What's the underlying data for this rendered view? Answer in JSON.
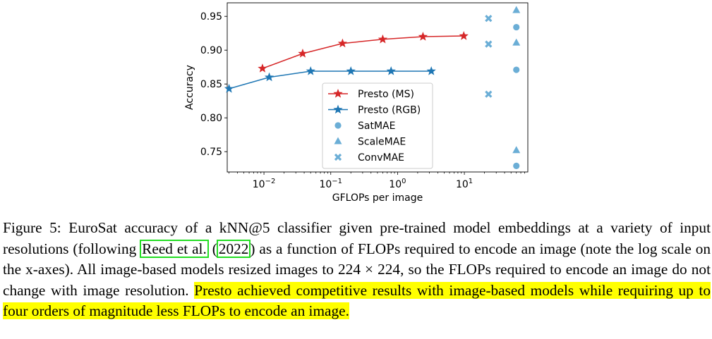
{
  "chart_data": {
    "type": "line",
    "xscale": "log",
    "xlabel": "GFLOPs per image",
    "ylabel": "Accuracy",
    "ylim": [
      0.72,
      0.97
    ],
    "y_ticks": [
      "0.75",
      "0.80",
      "0.85",
      "0.90",
      "0.95"
    ],
    "x_ticks": [
      "10^-2",
      "10^-1",
      "10^0",
      "10^1"
    ],
    "legend_position": "center",
    "series": [
      {
        "name": "Presto (MS)",
        "marker": "star",
        "color": "#d62728",
        "x": [
          0.0095,
          0.038,
          0.15,
          0.6,
          2.4,
          9.8
        ],
        "y": [
          0.873,
          0.895,
          0.91,
          0.916,
          0.92,
          0.921
        ]
      },
      {
        "name": "Presto (RGB)",
        "marker": "star",
        "color": "#1f77b4",
        "x": [
          0.003,
          0.012,
          0.05,
          0.2,
          0.8,
          3.2
        ],
        "y": [
          0.843,
          0.86,
          0.869,
          0.869,
          0.869,
          0.869
        ]
      },
      {
        "name": "SatMAE",
        "marker": "circle",
        "color": "#6baed6",
        "x": [
          60,
          60,
          60
        ],
        "y": [
          0.934,
          0.871,
          0.729
        ]
      },
      {
        "name": "ScaleMAE",
        "marker": "triangle",
        "color": "#6baed6",
        "x": [
          60,
          60,
          60
        ],
        "y": [
          0.959,
          0.911,
          0.752
        ]
      },
      {
        "name": "ConvMAE",
        "marker": "x",
        "color": "#6baed6",
        "x": [
          23,
          23,
          23
        ],
        "y": [
          0.947,
          0.909,
          0.835
        ]
      }
    ]
  },
  "caption": {
    "part1": "Figure 5: EuroSat accuracy of a kNN@5 classifier given pre-trained model embeddings at a variety of input resolutions (following ",
    "cite_author": "Reed et al.",
    "cite_open": " (",
    "cite_year": "2022",
    "cite_close": ")",
    "part2": " as a function of FLOPs required to encode an image (note the log scale on the x-axes). All image-based models resized images to 224 × 224, so the FLOPs required to encode an image do not change with image resolution. ",
    "highlight": "Presto achieved competitive results with image-based models while requiring up to four orders of magnitude less FLOPs to encode an image."
  }
}
